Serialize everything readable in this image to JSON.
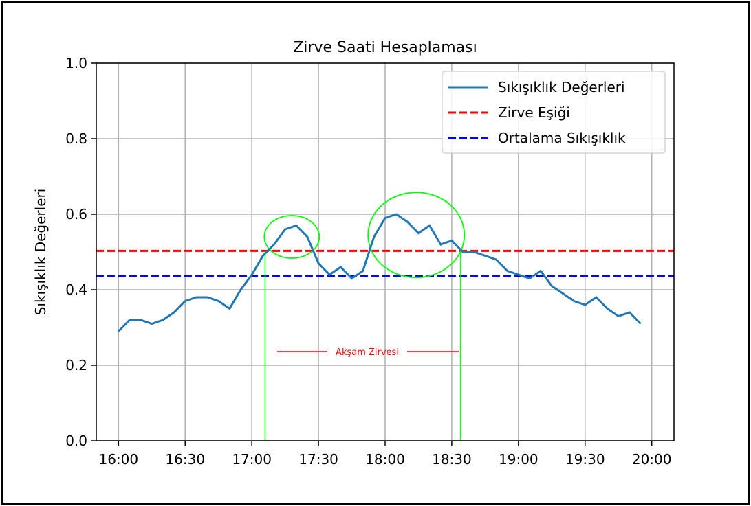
{
  "chart_data": {
    "type": "line",
    "title": "Zirve Saati Hesaplaması",
    "xlabel": "",
    "ylabel": "Sıkışıklık Değerleri",
    "ylim": [
      0.0,
      1.0
    ],
    "xlim": [
      "15:50",
      "20:10"
    ],
    "x_ticks": [
      "16:00",
      "16:30",
      "17:00",
      "17:30",
      "18:00",
      "18:30",
      "19:00",
      "19:30",
      "20:00"
    ],
    "y_ticks": [
      "0.0",
      "0.2",
      "0.4",
      "0.6",
      "0.8",
      "1.0"
    ],
    "grid": true,
    "legend_position": "top-right",
    "x": [
      "16:00",
      "16:05",
      "16:10",
      "16:15",
      "16:20",
      "16:25",
      "16:30",
      "16:35",
      "16:40",
      "16:45",
      "16:50",
      "16:55",
      "17:00",
      "17:05",
      "17:10",
      "17:15",
      "17:20",
      "17:25",
      "17:30",
      "17:35",
      "17:40",
      "17:45",
      "17:50",
      "17:55",
      "18:00",
      "18:05",
      "18:10",
      "18:15",
      "18:20",
      "18:25",
      "18:30",
      "18:35",
      "18:40",
      "18:45",
      "18:50",
      "18:55",
      "19:00",
      "19:05",
      "19:10",
      "19:15",
      "19:20",
      "19:25",
      "19:30",
      "19:35",
      "19:40",
      "19:45",
      "19:50",
      "19:55"
    ],
    "series": [
      {
        "name": "Sıkışıklık Değerleri",
        "color": "#1f77b4",
        "style": "solid",
        "values": [
          0.29,
          0.32,
          0.32,
          0.31,
          0.32,
          0.34,
          0.37,
          0.38,
          0.38,
          0.37,
          0.35,
          0.4,
          0.44,
          0.49,
          0.52,
          0.56,
          0.57,
          0.54,
          0.47,
          0.44,
          0.46,
          0.43,
          0.45,
          0.54,
          0.59,
          0.6,
          0.58,
          0.55,
          0.57,
          0.52,
          0.53,
          0.5,
          0.5,
          0.49,
          0.48,
          0.45,
          0.44,
          0.43,
          0.45,
          0.41,
          0.39,
          0.37,
          0.36,
          0.38,
          0.35,
          0.33,
          0.34,
          0.31
        ]
      },
      {
        "name": "Zirve Eşiği",
        "color": "#ff0000",
        "style": "dashed",
        "value": 0.503
      },
      {
        "name": "Ortalama Sıkışıklık",
        "color": "#0000ff",
        "style": "dashed",
        "value": 0.437
      }
    ],
    "annotations": {
      "peak_label": "Akşam Zirvesi",
      "peak_start": "17:06",
      "peak_end": "18:34",
      "circle_color": "#00ff00"
    }
  }
}
